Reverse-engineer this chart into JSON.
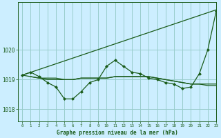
{
  "title": "Graphe pression niveau de la mer (hPa)",
  "background_color": "#cceeff",
  "grid_color": "#99cccc",
  "line_color": "#1a5c1a",
  "xlim": [
    -0.5,
    23
  ],
  "ylim": [
    1017.6,
    1021.6
  ],
  "yticks": [
    1018,
    1019,
    1020
  ],
  "ytick_labels": [
    "1018",
    "1019",
    "1020"
  ],
  "xticks": [
    0,
    1,
    2,
    3,
    4,
    5,
    6,
    7,
    8,
    9,
    10,
    11,
    12,
    13,
    14,
    15,
    16,
    17,
    18,
    19,
    20,
    21,
    22,
    23
  ],
  "series_main": {
    "x": [
      0,
      1,
      2,
      3,
      4,
      5,
      6,
      7,
      8,
      9,
      10,
      11,
      12,
      13,
      14,
      15,
      16,
      17,
      18,
      19,
      20,
      21,
      22,
      23
    ],
    "y": [
      1019.15,
      1019.25,
      1019.1,
      1018.9,
      1018.75,
      1018.35,
      1018.35,
      1018.6,
      1018.9,
      1019.0,
      1019.45,
      1019.65,
      1019.45,
      1019.25,
      1019.2,
      1019.05,
      1019.0,
      1018.9,
      1018.85,
      1018.7,
      1018.75,
      1019.2,
      1020.0,
      1021.3
    ]
  },
  "series_diagonal": {
    "x": [
      0,
      23
    ],
    "y": [
      1019.15,
      1021.35
    ]
  },
  "series_flat1": {
    "x": [
      0,
      1,
      2,
      3,
      4,
      5,
      6,
      7,
      8,
      9,
      10,
      11,
      12,
      13,
      14,
      15,
      16,
      17,
      18,
      19,
      20,
      21,
      22,
      23
    ],
    "y": [
      1019.15,
      1019.1,
      1019.05,
      1019.05,
      1019.05,
      1019.0,
      1019.0,
      1019.05,
      1019.05,
      1019.05,
      1019.05,
      1019.1,
      1019.1,
      1019.1,
      1019.1,
      1019.1,
      1019.05,
      1019.0,
      1018.95,
      1018.9,
      1018.85,
      1018.85,
      1018.85,
      1018.85
    ]
  },
  "series_flat2": {
    "x": [
      1,
      2,
      3,
      4,
      5,
      6,
      7,
      8,
      9,
      10,
      11,
      12,
      13,
      14,
      15,
      16,
      17,
      18,
      19,
      20,
      21,
      22,
      23
    ],
    "y": [
      1019.1,
      1019.05,
      1019.0,
      1019.0,
      1019.0,
      1019.0,
      1019.05,
      1019.05,
      1019.05,
      1019.05,
      1019.1,
      1019.1,
      1019.1,
      1019.1,
      1019.1,
      1019.05,
      1019.0,
      1018.95,
      1018.9,
      1018.85,
      1018.85,
      1018.8,
      1018.8
    ]
  }
}
